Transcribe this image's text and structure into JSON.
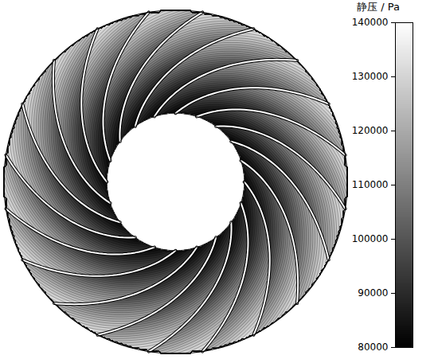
{
  "chart_data": {
    "type": "contour",
    "title": "静压 / Pa",
    "blade_count": 20,
    "span": [
      0,
      0.2,
      0.4,
      0.6,
      0.8,
      1
    ],
    "pitch": [
      0,
      0.25,
      0.5,
      0.75,
      1
    ],
    "values": [
      [
        82000,
        83000,
        85000,
        87000,
        90000
      ],
      [
        86000,
        89000,
        92000,
        95000,
        99000
      ],
      [
        92000,
        96000,
        100000,
        104000,
        108000
      ],
      [
        100000,
        105000,
        109000,
        113000,
        117000
      ],
      [
        110000,
        114000,
        118000,
        122000,
        126000
      ],
      [
        120000,
        124000,
        128000,
        131000,
        134000
      ]
    ],
    "colorbar": {
      "lim": [
        80000,
        140000
      ],
      "ticks": [
        80000,
        90000,
        100000,
        110000,
        120000,
        130000,
        140000
      ],
      "colors": [
        "#000000",
        "#ffffff"
      ]
    }
  }
}
